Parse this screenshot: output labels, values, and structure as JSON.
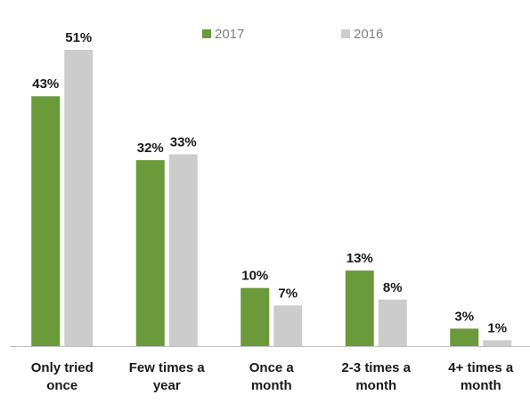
{
  "chart_data": {
    "type": "bar",
    "categories": [
      [
        "Only tried",
        "once"
      ],
      [
        "Few times a",
        "year"
      ],
      [
        "Once a",
        "month"
      ],
      [
        "2-3 times a",
        "month"
      ],
      [
        "4+ times a",
        "month"
      ]
    ],
    "series": [
      {
        "name": "2017",
        "color": "#6a9a3a",
        "values": [
          43,
          32,
          10,
          13,
          3
        ],
        "labels": [
          "43%",
          "32%",
          "10%",
          "13%",
          "3%"
        ]
      },
      {
        "name": "2016",
        "color": "#cccccc",
        "values": [
          51,
          33,
          7,
          8,
          1
        ],
        "labels": [
          "51%",
          "33%",
          "7%",
          "8%",
          "1%"
        ]
      }
    ],
    "ylim": [
      0,
      51
    ],
    "legend": "top-right",
    "grid": false
  }
}
